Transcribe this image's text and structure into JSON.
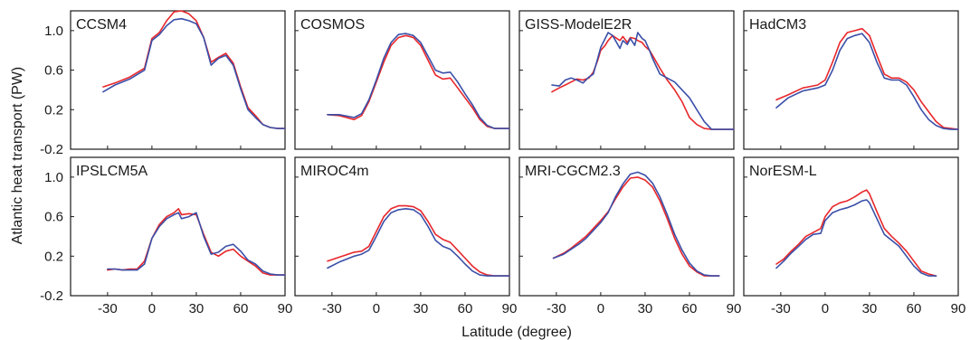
{
  "chart_data": {
    "type": "line",
    "xlabel": "Latitude (degree)",
    "ylabel": "Atlantic heat transport (PW)",
    "xlim": [
      -55,
      90
    ],
    "ylim": [
      -0.2,
      1.2
    ],
    "x_ticks": [
      -30,
      0,
      30,
      60,
      90
    ],
    "x_tick_labels": [
      "-30",
      "0",
      "30",
      "60",
      "90"
    ],
    "y_ticks": [
      -0.2,
      0.2,
      0.6,
      1.0
    ],
    "y_tick_labels": [
      "-0.2",
      "0.2",
      "0.6",
      "1.0"
    ],
    "series_colors": [
      "#e8262a",
      "#3a4fa8"
    ],
    "grid": false,
    "panels": [
      {
        "title": "CCSM4",
        "series": [
          {
            "color": "#e8262a",
            "x": [
              -33,
              -25,
              -15,
              -5,
              0,
              5,
              10,
              15,
              20,
              25,
              30,
              35,
              40,
              45,
              50,
              55,
              60,
              65,
              70,
              75,
              80,
              85,
              90
            ],
            "y": [
              0.43,
              0.47,
              0.53,
              0.62,
              0.92,
              0.98,
              1.1,
              1.19,
              1.2,
              1.17,
              1.1,
              0.93,
              0.68,
              0.73,
              0.77,
              0.67,
              0.43,
              0.22,
              0.14,
              0.05,
              0.02,
              0.01,
              0.01
            ]
          },
          {
            "color": "#3a4fa8",
            "x": [
              -33,
              -25,
              -15,
              -5,
              0,
              5,
              10,
              15,
              20,
              25,
              30,
              35,
              40,
              45,
              50,
              55,
              60,
              65,
              70,
              75,
              80,
              85,
              90
            ],
            "y": [
              0.38,
              0.45,
              0.51,
              0.6,
              0.9,
              0.96,
              1.05,
              1.11,
              1.12,
              1.1,
              1.07,
              0.93,
              0.65,
              0.72,
              0.75,
              0.65,
              0.41,
              0.2,
              0.12,
              0.05,
              0.02,
              0.01,
              0.01
            ]
          }
        ]
      },
      {
        "title": "COSMOS",
        "series": [
          {
            "color": "#e8262a",
            "x": [
              -33,
              -25,
              -15,
              -10,
              -5,
              0,
              5,
              10,
              15,
              20,
              25,
              30,
              35,
              40,
              45,
              50,
              55,
              60,
              65,
              70,
              75,
              80,
              85,
              90
            ],
            "y": [
              0.15,
              0.14,
              0.1,
              0.14,
              0.28,
              0.48,
              0.68,
              0.85,
              0.93,
              0.95,
              0.93,
              0.85,
              0.7,
              0.55,
              0.51,
              0.52,
              0.42,
              0.32,
              0.22,
              0.1,
              0.03,
              0.01,
              0.01,
              0.01
            ]
          },
          {
            "color": "#3a4fa8",
            "x": [
              -33,
              -25,
              -15,
              -10,
              -5,
              0,
              5,
              10,
              15,
              20,
              25,
              30,
              35,
              40,
              45,
              50,
              55,
              60,
              65,
              70,
              75,
              80,
              85,
              90
            ],
            "y": [
              0.15,
              0.15,
              0.12,
              0.16,
              0.3,
              0.5,
              0.72,
              0.88,
              0.96,
              0.97,
              0.95,
              0.88,
              0.74,
              0.6,
              0.57,
              0.58,
              0.48,
              0.36,
              0.25,
              0.12,
              0.04,
              0.01,
              0.01,
              0.01
            ]
          }
        ]
      },
      {
        "title": "GISS-ModelE2R",
        "series": [
          {
            "color": "#e8262a",
            "x": [
              -33,
              -28,
              -24,
              -20,
              -16,
              -12,
              -8,
              -5,
              -2,
              0,
              3,
              5,
              8,
              10,
              13,
              15,
              18,
              20,
              23,
              25,
              28,
              30,
              33,
              35,
              40,
              45,
              50,
              55,
              60,
              65,
              70,
              75,
              80,
              85,
              90
            ],
            "y": [
              0.38,
              0.42,
              0.45,
              0.48,
              0.51,
              0.5,
              0.52,
              0.58,
              0.7,
              0.8,
              0.85,
              0.9,
              0.95,
              0.93,
              0.9,
              0.94,
              0.88,
              0.93,
              0.92,
              0.9,
              0.88,
              0.84,
              0.8,
              0.75,
              0.62,
              0.5,
              0.4,
              0.28,
              0.12,
              0.05,
              0.01,
              0.0,
              0.0,
              0.0,
              0.0
            ]
          },
          {
            "color": "#3a4fa8",
            "x": [
              -33,
              -28,
              -24,
              -20,
              -16,
              -12,
              -8,
              -5,
              -2,
              0,
              3,
              5,
              8,
              10,
              13,
              15,
              18,
              20,
              23,
              25,
              28,
              30,
              33,
              35,
              40,
              45,
              50,
              55,
              60,
              65,
              70,
              75,
              80,
              85,
              90
            ],
            "y": [
              0.45,
              0.44,
              0.5,
              0.52,
              0.5,
              0.47,
              0.53,
              0.56,
              0.72,
              0.83,
              0.92,
              0.98,
              0.95,
              0.9,
              0.82,
              0.9,
              0.86,
              0.92,
              0.85,
              0.98,
              0.92,
              0.9,
              0.8,
              0.72,
              0.56,
              0.52,
              0.48,
              0.4,
              0.32,
              0.2,
              0.08,
              0.0,
              0.0,
              0.0,
              0.0
            ]
          }
        ]
      },
      {
        "title": "HadCM3",
        "series": [
          {
            "color": "#e8262a",
            "x": [
              -33,
              -25,
              -15,
              -5,
              0,
              5,
              10,
              15,
              20,
              25,
              30,
              35,
              40,
              45,
              50,
              55,
              60,
              65,
              70,
              75,
              80,
              85,
              90
            ],
            "y": [
              0.3,
              0.35,
              0.42,
              0.45,
              0.5,
              0.68,
              0.88,
              0.98,
              1.0,
              1.02,
              0.95,
              0.75,
              0.56,
              0.52,
              0.52,
              0.48,
              0.4,
              0.28,
              0.18,
              0.08,
              0.02,
              0.01,
              0.0
            ]
          },
          {
            "color": "#3a4fa8",
            "x": [
              -33,
              -25,
              -15,
              -5,
              0,
              5,
              10,
              15,
              20,
              25,
              30,
              35,
              40,
              45,
              50,
              55,
              60,
              65,
              70,
              75,
              80,
              85,
              90
            ],
            "y": [
              0.22,
              0.32,
              0.39,
              0.42,
              0.45,
              0.6,
              0.8,
              0.92,
              0.95,
              0.97,
              0.88,
              0.68,
              0.52,
              0.5,
              0.5,
              0.45,
              0.33,
              0.2,
              0.1,
              0.04,
              0.01,
              0.0,
              0.0
            ]
          }
        ]
      },
      {
        "title": "IPSLCM5A",
        "series": [
          {
            "color": "#e8262a",
            "x": [
              -30,
              -25,
              -20,
              -15,
              -10,
              -5,
              0,
              5,
              10,
              15,
              18,
              20,
              25,
              30,
              35,
              40,
              45,
              50,
              55,
              60,
              65,
              70,
              75,
              80,
              85,
              90
            ],
            "y": [
              0.06,
              0.07,
              0.06,
              0.07,
              0.07,
              0.15,
              0.38,
              0.52,
              0.6,
              0.64,
              0.68,
              0.62,
              0.63,
              0.62,
              0.42,
              0.24,
              0.2,
              0.25,
              0.27,
              0.2,
              0.15,
              0.1,
              0.03,
              0.01,
              0.01,
              0.01
            ]
          },
          {
            "color": "#3a4fa8",
            "x": [
              -30,
              -25,
              -20,
              -15,
              -10,
              -5,
              0,
              5,
              10,
              15,
              18,
              20,
              25,
              30,
              35,
              40,
              45,
              50,
              55,
              60,
              65,
              70,
              75,
              80,
              85,
              90
            ],
            "y": [
              0.07,
              0.07,
              0.06,
              0.06,
              0.06,
              0.12,
              0.38,
              0.5,
              0.58,
              0.62,
              0.64,
              0.58,
              0.6,
              0.64,
              0.4,
              0.22,
              0.24,
              0.3,
              0.32,
              0.25,
              0.16,
              0.12,
              0.05,
              0.02,
              0.01,
              0.01
            ]
          }
        ]
      },
      {
        "title": "MIROC4m",
        "series": [
          {
            "color": "#e8262a",
            "x": [
              -33,
              -25,
              -15,
              -10,
              -5,
              0,
              5,
              10,
              15,
              20,
              25,
              30,
              35,
              40,
              45,
              50,
              55,
              60,
              65,
              70,
              75,
              80,
              85,
              90
            ],
            "y": [
              0.15,
              0.19,
              0.24,
              0.25,
              0.3,
              0.45,
              0.6,
              0.68,
              0.71,
              0.71,
              0.7,
              0.66,
              0.55,
              0.42,
              0.37,
              0.34,
              0.26,
              0.18,
              0.1,
              0.04,
              0.01,
              0.0,
              0.0,
              0.0
            ]
          },
          {
            "color": "#3a4fa8",
            "x": [
              -33,
              -25,
              -15,
              -10,
              -5,
              0,
              5,
              10,
              15,
              20,
              25,
              30,
              35,
              40,
              45,
              50,
              55,
              60,
              65,
              70,
              75,
              80,
              85,
              90
            ],
            "y": [
              0.08,
              0.14,
              0.2,
              0.22,
              0.26,
              0.4,
              0.55,
              0.64,
              0.67,
              0.68,
              0.67,
              0.62,
              0.5,
              0.36,
              0.3,
              0.27,
              0.2,
              0.12,
              0.05,
              0.01,
              0.0,
              0.0,
              0.0,
              0.0
            ]
          }
        ]
      },
      {
        "title": "MRI-CGCM2.3",
        "series": [
          {
            "color": "#e8262a",
            "x": [
              -32,
              -25,
              -20,
              -15,
              -10,
              -5,
              0,
              5,
              10,
              15,
              20,
              25,
              30,
              35,
              40,
              45,
              50,
              55,
              60,
              65,
              70,
              75,
              80
            ],
            "y": [
              0.18,
              0.23,
              0.28,
              0.34,
              0.4,
              0.48,
              0.56,
              0.65,
              0.78,
              0.9,
              0.99,
              1.0,
              0.97,
              0.9,
              0.76,
              0.58,
              0.38,
              0.22,
              0.1,
              0.04,
              0.0,
              0.0,
              0.0
            ]
          },
          {
            "color": "#3a4fa8",
            "x": [
              -32,
              -25,
              -20,
              -15,
              -10,
              -5,
              0,
              5,
              10,
              15,
              20,
              25,
              30,
              35,
              40,
              45,
              50,
              55,
              60,
              65,
              70,
              75,
              80
            ],
            "y": [
              0.18,
              0.22,
              0.27,
              0.32,
              0.38,
              0.46,
              0.54,
              0.64,
              0.8,
              0.93,
              1.03,
              1.05,
              1.02,
              0.94,
              0.8,
              0.62,
              0.42,
              0.26,
              0.13,
              0.05,
              0.01,
              0.0,
              0.0
            ]
          }
        ]
      },
      {
        "title": "NorESM-L",
        "series": [
          {
            "color": "#e8262a",
            "x": [
              -33,
              -28,
              -23,
              -18,
              -13,
              -8,
              -3,
              0,
              5,
              10,
              15,
              20,
              25,
              28,
              30,
              35,
              40,
              45,
              50,
              55,
              60,
              65,
              70,
              75
            ],
            "y": [
              0.12,
              0.17,
              0.25,
              0.32,
              0.4,
              0.44,
              0.48,
              0.6,
              0.7,
              0.74,
              0.76,
              0.8,
              0.85,
              0.87,
              0.83,
              0.65,
              0.48,
              0.4,
              0.33,
              0.25,
              0.15,
              0.05,
              0.02,
              0.0
            ]
          },
          {
            "color": "#3a4fa8",
            "x": [
              -33,
              -28,
              -23,
              -18,
              -13,
              -8,
              -3,
              0,
              5,
              10,
              15,
              20,
              25,
              28,
              30,
              35,
              40,
              45,
              50,
              55,
              60,
              65,
              70,
              75
            ],
            "y": [
              0.08,
              0.15,
              0.23,
              0.3,
              0.37,
              0.42,
              0.43,
              0.56,
              0.64,
              0.67,
              0.69,
              0.72,
              0.76,
              0.77,
              0.74,
              0.58,
              0.42,
              0.36,
              0.3,
              0.2,
              0.1,
              0.03,
              0.0,
              0.0
            ]
          }
        ]
      }
    ]
  }
}
